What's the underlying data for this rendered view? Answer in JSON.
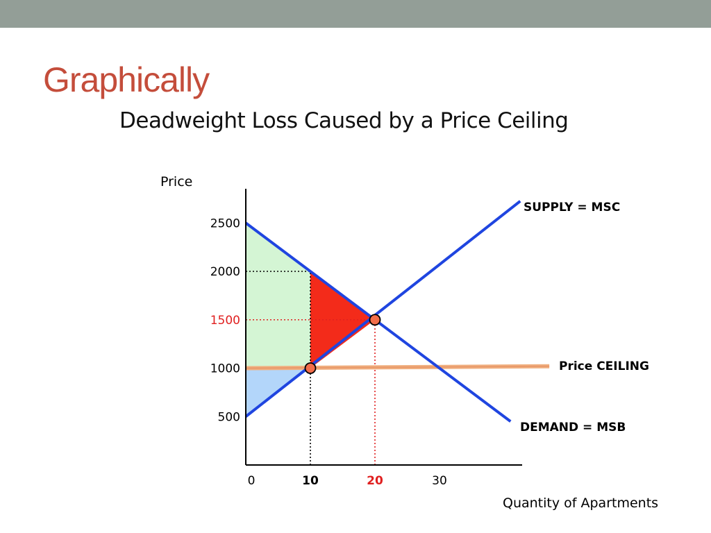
{
  "slide": {
    "title": "Graphically",
    "top_bar_color": "#939e97",
    "title_color": "#c44d3b"
  },
  "chart_data": {
    "type": "line",
    "title": "Deadweight Loss Caused by a Price Ceiling",
    "xlabel": "Quantity of Apartments",
    "ylabel": "Price",
    "xlim": [
      0,
      43
    ],
    "ylim": [
      0,
      2850
    ],
    "x_ticks": [
      {
        "value": 0,
        "label": "0",
        "bold": false,
        "color": "#000000"
      },
      {
        "value": 10,
        "label": "10",
        "bold": true,
        "color": "#000000"
      },
      {
        "value": 20,
        "label": "20",
        "bold": true,
        "color": "#e02020"
      },
      {
        "value": 30,
        "label": "30",
        "bold": false,
        "color": "#000000"
      }
    ],
    "y_ticks": [
      {
        "value": 500,
        "label": "500",
        "color": "#000000"
      },
      {
        "value": 1000,
        "label": "1000",
        "color": "#000000"
      },
      {
        "value": 1500,
        "label": "1500",
        "color": "#e02020"
      },
      {
        "value": 2000,
        "label": "2000",
        "color": "#000000"
      },
      {
        "value": 2500,
        "label": "2500",
        "color": "#000000"
      }
    ],
    "series": [
      {
        "name": "SUPPLY = MSC",
        "color": "#1f45e0",
        "x": [
          0,
          42.5
        ],
        "y": [
          500,
          2725
        ]
      },
      {
        "name": "DEMAND = MSB",
        "color": "#1f45e0",
        "x": [
          0,
          41
        ],
        "y": [
          2500,
          450
        ]
      },
      {
        "name": "Price CEILING",
        "color": "#f0b080",
        "x": [
          0,
          47
        ],
        "y": [
          1000,
          1020
        ]
      }
    ],
    "areas": [
      {
        "role": "consumer-surplus",
        "color": "#d4f5d4",
        "x": [
          0,
          10,
          10,
          0
        ],
        "y": [
          2500,
          2000,
          1000,
          1000
        ]
      },
      {
        "role": "producer-surplus",
        "color": "#b3d6fa",
        "x": [
          0,
          10,
          0
        ],
        "y": [
          1000,
          1000,
          500
        ]
      },
      {
        "role": "deadweight-loss",
        "color": "#f32b1a",
        "x": [
          10,
          10,
          20
        ],
        "y": [
          2000,
          1000,
          1500
        ]
      }
    ],
    "points": [
      {
        "role": "ceiling-quantity",
        "x": 10,
        "y": 1000,
        "color": "#f26d4a"
      },
      {
        "role": "equilibrium",
        "x": 20,
        "y": 1500,
        "color": "#f26d4a"
      }
    ],
    "guides": [
      {
        "role": "ceiling-q-vertical",
        "color": "#000000",
        "x": [
          10,
          10
        ],
        "y": [
          0,
          2000
        ]
      },
      {
        "role": "price-2000-horizontal",
        "color": "#000000",
        "x": [
          0,
          10
        ],
        "y": [
          2000,
          2000
        ]
      },
      {
        "role": "eq-price-horizontal",
        "color": "#e02020",
        "x": [
          0,
          20
        ],
        "y": [
          1500,
          1500
        ]
      },
      {
        "role": "eq-q-vertical",
        "color": "#e02020",
        "x": [
          20,
          20
        ],
        "y": [
          0,
          1500
        ]
      }
    ],
    "grid": false
  }
}
